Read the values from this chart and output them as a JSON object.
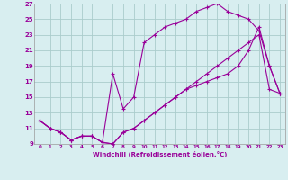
{
  "xlabel": "Windchill (Refroidissement éolien,°C)",
  "line_color": "#990099",
  "bg_color": "#d8eef0",
  "grid_color": "#aacccc",
  "xlim": [
    -0.5,
    23.5
  ],
  "ylim": [
    9,
    27
  ],
  "xticks": [
    0,
    1,
    2,
    3,
    4,
    5,
    6,
    7,
    8,
    9,
    10,
    11,
    12,
    13,
    14,
    15,
    16,
    17,
    18,
    19,
    20,
    21,
    22,
    23
  ],
  "yticks": [
    9,
    11,
    13,
    15,
    17,
    19,
    21,
    23,
    25,
    27
  ],
  "line1_x": [
    0,
    1,
    2,
    3,
    4,
    5,
    6,
    7,
    8,
    9,
    10,
    11,
    12,
    13,
    14,
    15,
    16,
    17,
    18,
    19,
    20,
    21,
    22,
    23
  ],
  "line1_y": [
    12,
    11,
    10.5,
    9.5,
    10,
    10,
    9.2,
    9,
    10.5,
    11,
    12,
    13,
    14,
    15,
    16,
    17,
    18,
    19,
    20,
    21,
    22,
    23,
    16,
    15.5
  ],
  "line2_x": [
    0,
    1,
    2,
    3,
    4,
    5,
    6,
    7,
    8,
    9,
    10,
    11,
    12,
    13,
    14,
    15,
    16,
    17,
    18,
    19,
    20,
    21,
    22,
    23
  ],
  "line2_y": [
    12,
    11,
    10.5,
    9.5,
    10,
    10,
    9.2,
    18,
    13.5,
    15,
    22,
    23,
    24,
    24.5,
    25,
    26,
    26.5,
    27,
    26,
    25.5,
    25,
    23.5,
    19,
    15.5
  ],
  "line3_x": [
    0,
    1,
    2,
    3,
    4,
    5,
    6,
    7,
    8,
    9,
    10,
    11,
    12,
    13,
    14,
    15,
    16,
    17,
    18,
    19,
    20,
    21,
    22,
    23
  ],
  "line3_y": [
    12,
    11,
    10.5,
    9.5,
    10,
    10,
    9.2,
    9,
    10.5,
    11,
    12,
    13,
    14,
    15,
    16,
    16.5,
    17,
    17.5,
    18,
    19,
    21,
    24,
    19,
    15.5
  ]
}
